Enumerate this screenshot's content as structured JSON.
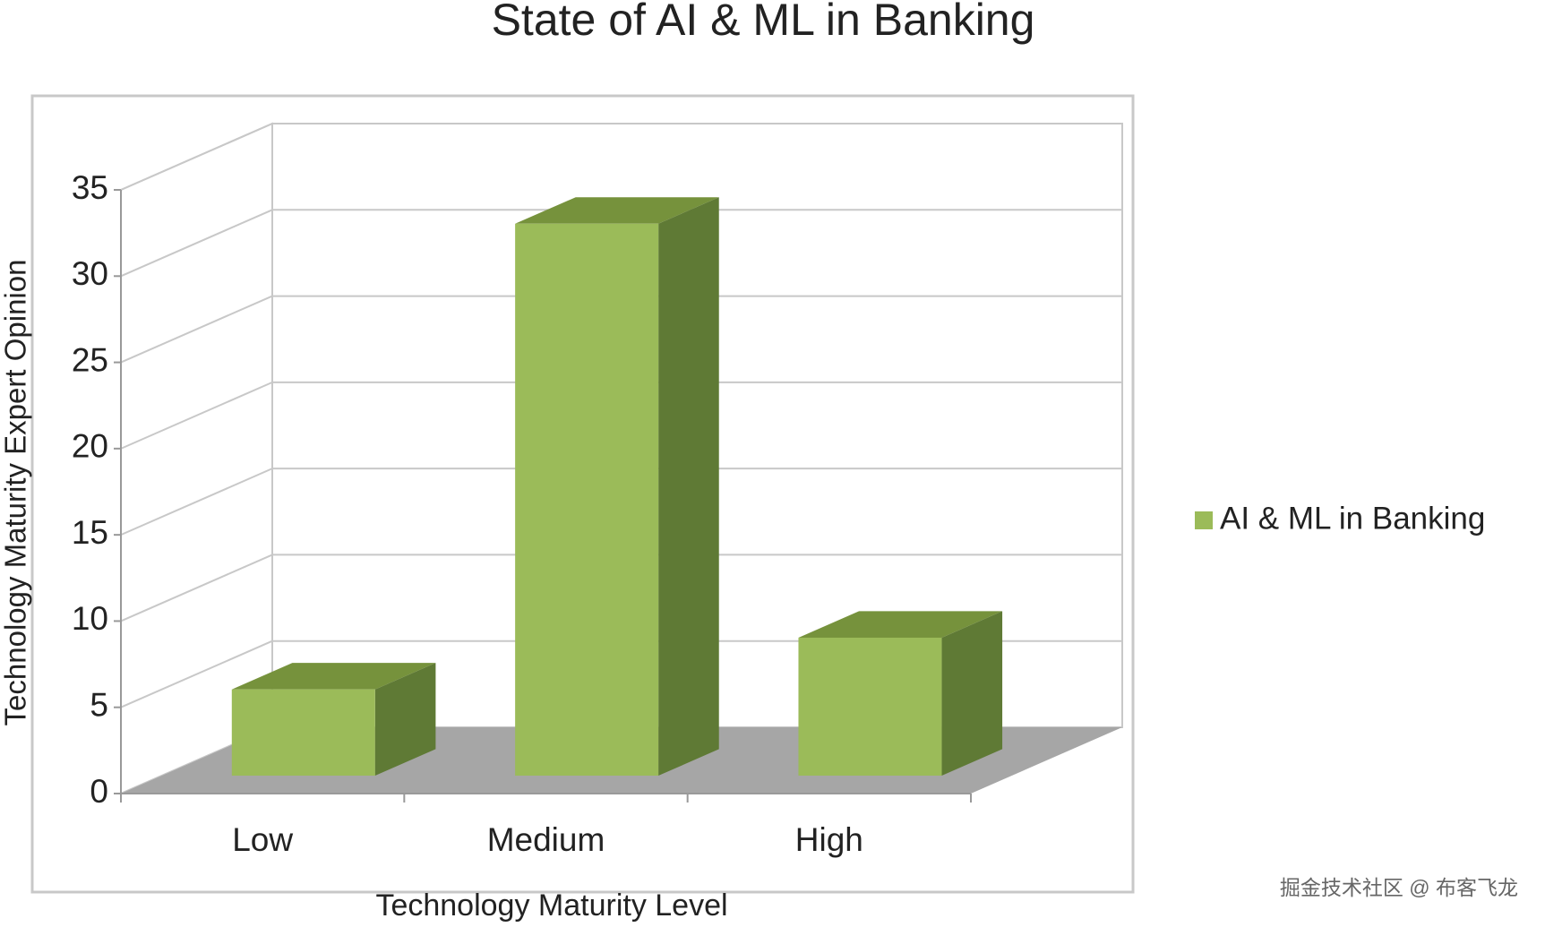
{
  "chart_data": {
    "type": "bar3d",
    "title": "State of AI & ML in Banking",
    "x_label": "Technology Maturity Level",
    "y_label": "Technology Maturity  Expert Opinion",
    "categories": [
      "Low",
      "Medium",
      "High"
    ],
    "series": [
      {
        "name": "AI & ML in Banking",
        "color": "#9bbb59",
        "values": [
          5,
          32,
          8
        ]
      }
    ],
    "ylim": [
      0,
      35
    ],
    "yticks": [
      0,
      5,
      10,
      15,
      20,
      25,
      30,
      35
    ],
    "grid": true,
    "legend": "right"
  },
  "watermark": "掘金技术社区 @ 布客飞龙"
}
